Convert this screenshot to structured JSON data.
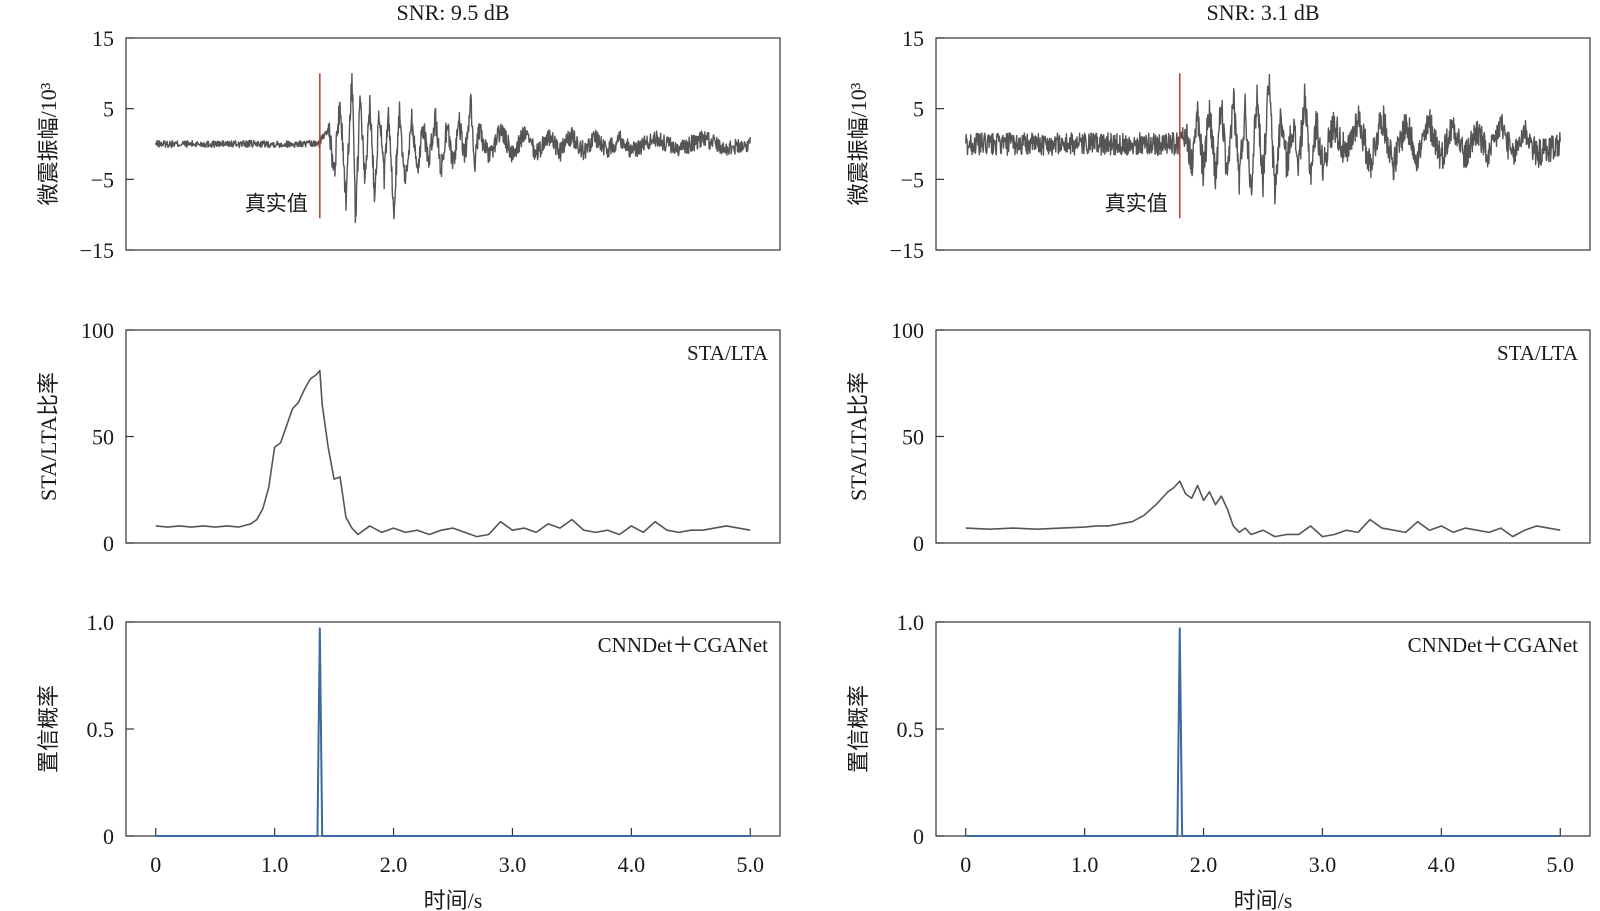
{
  "chart_data": [
    {
      "type": "line",
      "panel": "waveform",
      "title": "SNR: 9.5 dB",
      "ylabel": "微震振幅/10³",
      "ylim": [
        -15,
        15
      ],
      "yticks": [
        "15",
        "5",
        "−5",
        "−15"
      ],
      "ytick_values": [
        15,
        5,
        -5,
        -15
      ],
      "xlim": [
        -0.25,
        5.25
      ],
      "pick_time": 1.38,
      "pick_label": "真实值",
      "series": [
        {
          "x": [
            0,
            1.38,
            1.45,
            1.5,
            1.55,
            1.6,
            1.65,
            1.68,
            1.72,
            1.76,
            1.8,
            1.84,
            1.88,
            1.92,
            1.96,
            2.0,
            2.05,
            2.1,
            2.15,
            2.2,
            2.25,
            2.3,
            2.35,
            2.4,
            2.45,
            2.5,
            2.55,
            2.6,
            2.65,
            2.68,
            2.72,
            2.8,
            2.9,
            3.0,
            3.1,
            3.2,
            3.3,
            3.4,
            3.5,
            3.6,
            3.7,
            3.8,
            3.9,
            4.0,
            4.2,
            4.4,
            4.6,
            4.8,
            5.0
          ],
          "y": [
            0,
            0,
            3,
            -4,
            6,
            -8,
            10,
            -11,
            7,
            -6,
            6,
            -7,
            5,
            -5,
            4,
            -10,
            5,
            -6,
            4,
            -4,
            3,
            -3,
            4,
            -4,
            3,
            -3,
            3,
            -2,
            6,
            -3,
            2,
            -2,
            2,
            -1.5,
            1.5,
            -1.5,
            1.2,
            -1.2,
            1.2,
            -1,
            1,
            -1,
            1,
            -1,
            0.8,
            -0.8,
            0.8,
            -0.6,
            0
          ],
          "envelope": [
            0.5,
            0.5,
            1.5,
            2,
            2,
            2,
            2,
            2,
            2,
            2,
            2,
            2,
            2,
            2,
            2,
            2,
            2,
            2,
            2,
            2,
            2,
            2,
            1.8,
            1.8,
            1.8,
            1.8,
            1.8,
            1.8,
            1.6,
            1.6,
            1.5,
            1.5,
            1.5,
            1.5,
            1.4,
            1.4,
            1.4,
            1.4,
            1.4,
            1.3,
            1.3,
            1.3,
            1.3,
            1.2,
            1.2,
            1.2,
            1.2,
            1.1,
            1
          ]
        }
      ]
    },
    {
      "type": "line",
      "panel": "waveform",
      "title": "SNR: 3.1 dB",
      "ylabel": "微震振幅/10³",
      "ylim": [
        -15,
        15
      ],
      "yticks": [
        "15",
        "5",
        "−5",
        "−15"
      ],
      "ytick_values": [
        15,
        5,
        -5,
        -15
      ],
      "xlim": [
        -0.25,
        5.25
      ],
      "pick_time": 1.8,
      "pick_label": "真实值",
      "series": [
        {
          "x": [
            0,
            1.8,
            1.85,
            1.9,
            1.95,
            2.0,
            2.05,
            2.1,
            2.15,
            2.2,
            2.25,
            2.3,
            2.35,
            2.4,
            2.45,
            2.5,
            2.55,
            2.6,
            2.65,
            2.7,
            2.75,
            2.8,
            2.85,
            2.9,
            2.95,
            3.0,
            3.1,
            3.2,
            3.3,
            3.4,
            3.5,
            3.6,
            3.7,
            3.8,
            3.9,
            4.0,
            4.1,
            4.2,
            4.3,
            4.4,
            4.5,
            4.6,
            4.7,
            4.8,
            5.0
          ],
          "y": [
            0,
            0,
            2,
            -3,
            4,
            -4,
            5,
            -5,
            6,
            -6,
            7,
            -5,
            5,
            -6,
            7,
            -5,
            9,
            -7,
            4,
            -3,
            3,
            -3,
            6,
            -4,
            3,
            -3,
            3,
            -2,
            4,
            -3,
            4,
            -3,
            3,
            -2,
            3,
            -2,
            3,
            -2,
            2,
            -2,
            3,
            -2,
            2,
            -1.5,
            0
          ],
          "envelope": [
            1.6,
            1.6,
            2,
            2.5,
            2.5,
            2.5,
            2.5,
            2.5,
            2.5,
            2.5,
            2.5,
            2.5,
            2.5,
            2.5,
            2.5,
            2.5,
            2.5,
            2.5,
            2.5,
            2.5,
            2.5,
            2.5,
            2.5,
            2.5,
            2.5,
            2.5,
            2.4,
            2.4,
            2.4,
            2.4,
            2.4,
            2.3,
            2.3,
            2.3,
            2.3,
            2.2,
            2.2,
            2.2,
            2.2,
            2.1,
            2.1,
            2.1,
            2,
            2,
            2
          ]
        }
      ]
    },
    {
      "type": "line",
      "panel": "stalta",
      "ylabel": "STA/LTA比率",
      "legend_text": "STA/LTA",
      "ylim": [
        0,
        100
      ],
      "yticks": [
        "100",
        "50",
        "0"
      ],
      "ytick_values": [
        100,
        50,
        0
      ],
      "xlim": [
        -0.25,
        5.25
      ],
      "series": [
        {
          "x": [
            0,
            0.1,
            0.2,
            0.3,
            0.4,
            0.5,
            0.6,
            0.7,
            0.8,
            0.85,
            0.9,
            0.95,
            1.0,
            1.05,
            1.1,
            1.15,
            1.2,
            1.25,
            1.3,
            1.35,
            1.38,
            1.4,
            1.45,
            1.5,
            1.55,
            1.6,
            1.65,
            1.7,
            1.8,
            1.9,
            2.0,
            2.1,
            2.2,
            2.3,
            2.4,
            2.5,
            2.6,
            2.7,
            2.8,
            2.9,
            3.0,
            3.1,
            3.2,
            3.3,
            3.4,
            3.5,
            3.6,
            3.7,
            3.8,
            3.9,
            4.0,
            4.1,
            4.2,
            4.3,
            4.4,
            4.5,
            4.6,
            4.7,
            4.8,
            4.9,
            5.0
          ],
          "y": [
            8,
            7.5,
            8,
            7.5,
            8,
            7.5,
            8,
            7.5,
            9,
            11,
            16,
            26,
            45,
            47,
            55,
            63,
            66,
            72,
            77,
            79,
            81,
            65,
            45,
            30,
            31,
            12,
            7,
            4,
            8,
            5,
            7,
            5,
            6,
            4,
            6,
            7,
            5,
            3,
            4,
            10,
            6,
            7,
            5,
            9,
            7,
            11,
            6,
            5,
            6,
            4,
            8,
            5,
            10,
            6,
            5,
            6,
            6,
            7,
            8,
            7,
            6
          ]
        }
      ]
    },
    {
      "type": "line",
      "panel": "stalta",
      "ylabel": "STA/LTA比率",
      "legend_text": "STA/LTA",
      "ylim": [
        0,
        100
      ],
      "yticks": [
        "100",
        "50",
        "0"
      ],
      "ytick_values": [
        100,
        50,
        0
      ],
      "xlim": [
        -0.25,
        5.25
      ],
      "series": [
        {
          "x": [
            0,
            0.2,
            0.4,
            0.6,
            0.8,
            1.0,
            1.1,
            1.2,
            1.3,
            1.4,
            1.5,
            1.6,
            1.7,
            1.75,
            1.8,
            1.85,
            1.9,
            1.95,
            2.0,
            2.05,
            2.1,
            2.15,
            2.2,
            2.25,
            2.3,
            2.35,
            2.4,
            2.5,
            2.6,
            2.7,
            2.8,
            2.9,
            3.0,
            3.1,
            3.2,
            3.3,
            3.4,
            3.5,
            3.6,
            3.7,
            3.8,
            3.9,
            4.0,
            4.1,
            4.2,
            4.3,
            4.4,
            4.5,
            4.6,
            4.7,
            4.8,
            4.9,
            5.0
          ],
          "y": [
            7,
            6.5,
            7,
            6.5,
            7,
            7.5,
            8,
            8,
            9,
            10,
            13,
            18,
            24,
            26,
            29,
            23,
            21,
            27,
            20,
            24,
            18,
            22,
            16,
            8,
            5,
            7,
            4,
            6,
            3,
            4,
            4,
            8,
            3,
            4,
            6,
            5,
            11,
            7,
            6,
            5,
            10,
            6,
            8,
            5,
            7,
            6,
            5,
            7,
            3,
            6,
            8,
            7,
            6
          ]
        }
      ]
    },
    {
      "type": "line",
      "panel": "probability",
      "ylabel": "置信概率",
      "legend_text": "CNNDet＋CGANet",
      "ylim": [
        0,
        1.0
      ],
      "yticks": [
        "1.0",
        "0.5",
        "0"
      ],
      "ytick_values": [
        1.0,
        0.5,
        0
      ],
      "xlim": [
        -0.25,
        5.25
      ],
      "xticks": [
        "0",
        "1.0",
        "2.0",
        "3.0",
        "4.0",
        "5.0"
      ],
      "xtick_values": [
        0,
        1,
        2,
        3,
        4,
        5
      ],
      "xlabel": "时间/s",
      "color": "#3a6aa0",
      "series": [
        {
          "x": [
            0,
            1.36,
            1.38,
            1.4,
            5.0
          ],
          "y": [
            0,
            0,
            0.97,
            0,
            0
          ]
        }
      ]
    },
    {
      "type": "line",
      "panel": "probability",
      "ylabel": "置信概率",
      "legend_text": "CNNDet＋CGANet",
      "ylim": [
        0,
        1.0
      ],
      "yticks": [
        "1.0",
        "0.5",
        "0"
      ],
      "ytick_values": [
        1.0,
        0.5,
        0
      ],
      "xlim": [
        -0.25,
        5.25
      ],
      "xticks": [
        "0",
        "1.0",
        "2.0",
        "3.0",
        "4.0",
        "5.0"
      ],
      "xtick_values": [
        0,
        1,
        2,
        3,
        4,
        5
      ],
      "xlabel": "时间/s",
      "color": "#3a6aa0",
      "series": [
        {
          "x": [
            0,
            1.78,
            1.8,
            1.82,
            5.0
          ],
          "y": [
            0,
            0,
            0.97,
            0,
            0
          ]
        }
      ]
    }
  ],
  "colors": {
    "trace": "#555555",
    "pick_line": "#c0392b",
    "probability": "#3a6aa0",
    "axis": "#333333"
  }
}
